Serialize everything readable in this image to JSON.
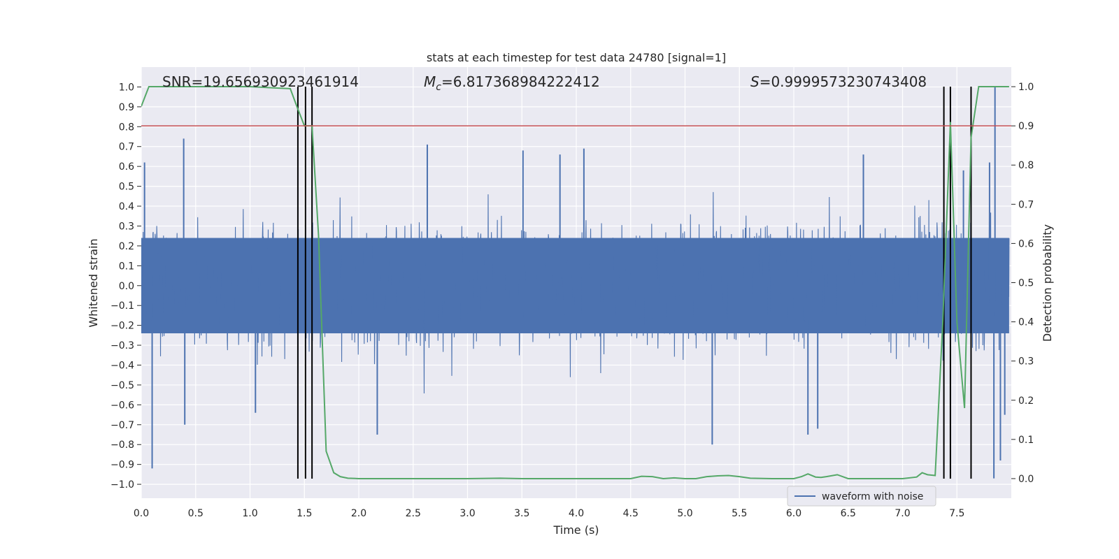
{
  "chart_data": {
    "type": "line",
    "title": "stats at each timestep for test data 24780 [signal=1]",
    "xlabel": "Time (s)",
    "ylabel": "Whitened strain",
    "y2label": "Detection probability",
    "xlim": [
      0.0,
      8.0
    ],
    "ylim": [
      -1.07,
      1.1
    ],
    "y2lim": [
      -0.05,
      1.05
    ],
    "x_ticks": [
      0.0,
      0.5,
      1.0,
      1.5,
      2.0,
      2.5,
      3.0,
      3.5,
      4.0,
      4.5,
      5.0,
      5.5,
      6.0,
      6.5,
      7.0,
      7.5
    ],
    "x_tick_labels": [
      "0.0",
      "0.5",
      "1.0",
      "1.5",
      "2.0",
      "2.5",
      "3.0",
      "3.5",
      "4.0",
      "4.5",
      "5.0",
      "5.5",
      "6.0",
      "6.5",
      "7.0",
      "7.5"
    ],
    "y_ticks": [
      1.0,
      0.9,
      0.8,
      0.7,
      0.6,
      0.5,
      0.4,
      0.3,
      0.2,
      0.1,
      0.0,
      -0.1,
      -0.2,
      -0.3,
      -0.4,
      -0.5,
      -0.6,
      -0.7,
      -0.8,
      -0.9,
      -1.0
    ],
    "y_tick_labels": [
      "1.0",
      "0.9",
      "0.8",
      "0.7",
      "0.6",
      "0.5",
      "0.4",
      "0.3",
      "0.2",
      "0.1",
      "0.0",
      "−0.1",
      "−0.2",
      "−0.3",
      "−0.4",
      "−0.5",
      "−0.6",
      "−0.7",
      "−0.8",
      "−0.9",
      "−1.0"
    ],
    "y2_ticks": [
      1.0,
      0.9,
      0.8,
      0.7,
      0.6,
      0.5,
      0.4,
      0.3,
      0.2,
      0.1,
      0.0
    ],
    "y2_tick_labels": [
      "1.0",
      "0.9",
      "0.8",
      "0.7",
      "0.6",
      "0.5",
      "0.4",
      "0.3",
      "0.2",
      "0.1",
      "0.0"
    ],
    "annotations": {
      "snr": "SNR=19.656930923461914",
      "mc_symbol": "M",
      "mc_sub": "c",
      "mc_value": "=6.817368984222412",
      "s_symbol": "S",
      "s_value": "=0.9999573230743408"
    },
    "legend": {
      "label": "waveform with noise",
      "position": "lower-right"
    },
    "threshold": {
      "value": 0.9,
      "axis": "y2",
      "color": "#c44e52"
    },
    "vertical_lines_x": [
      1.44,
      1.51,
      1.57,
      7.38,
      7.44,
      7.63
    ],
    "waveform": {
      "name": "waveform with noise",
      "color": "#4c72b0",
      "x_start": 0.0,
      "x_end": 7.98,
      "core_amplitude": 0.24,
      "noise_seed": 24780,
      "spike_peaks": [
        {
          "x": 0.03,
          "y": 0.62
        },
        {
          "x": 0.1,
          "y": -0.92
        },
        {
          "x": 0.39,
          "y": 0.74
        },
        {
          "x": 0.4,
          "y": -0.7
        },
        {
          "x": 1.05,
          "y": -0.64
        },
        {
          "x": 2.63,
          "y": 0.71
        },
        {
          "x": 2.17,
          "y": -0.75
        },
        {
          "x": 3.51,
          "y": 0.68
        },
        {
          "x": 3.85,
          "y": 0.66
        },
        {
          "x": 4.07,
          "y": 0.69
        },
        {
          "x": 5.25,
          "y": -0.8
        },
        {
          "x": 6.13,
          "y": -0.75
        },
        {
          "x": 6.22,
          "y": -0.72
        },
        {
          "x": 6.64,
          "y": 0.66
        },
        {
          "x": 7.56,
          "y": 0.58
        },
        {
          "x": 7.85,
          "y": 1.0
        },
        {
          "x": 7.84,
          "y": -0.97
        },
        {
          "x": 7.9,
          "y": -0.88
        },
        {
          "x": 7.94,
          "y": -0.65
        },
        {
          "x": 7.8,
          "y": 0.62
        }
      ]
    },
    "detection_probability": {
      "name": "Detection probability",
      "color": "#55a868",
      "x": [
        0.0,
        0.07,
        0.5,
        1.0,
        1.37,
        1.43,
        1.5,
        1.57,
        1.63,
        1.7,
        1.77,
        1.83,
        1.9,
        2.0,
        2.2,
        2.5,
        3.0,
        3.3,
        3.5,
        4.0,
        4.5,
        4.6,
        4.7,
        4.8,
        4.9,
        5.0,
        5.1,
        5.2,
        5.3,
        5.4,
        5.5,
        5.6,
        5.8,
        6.0,
        6.07,
        6.13,
        6.2,
        6.25,
        6.3,
        6.4,
        6.5,
        6.7,
        7.0,
        7.13,
        7.18,
        7.23,
        7.3,
        7.37,
        7.44,
        7.5,
        7.57,
        7.63,
        7.7,
        7.76,
        7.83,
        7.98
      ],
      "y": [
        0.95,
        1.0,
        1.0,
        1.0,
        0.995,
        0.95,
        0.9,
        0.9,
        0.62,
        0.07,
        0.015,
        0.005,
        0.001,
        0.0,
        0.0,
        0.0,
        0.0,
        0.001,
        0.0,
        0.0,
        0.0,
        0.006,
        0.005,
        0.0,
        0.002,
        0.0,
        0.0,
        0.005,
        0.007,
        0.008,
        0.005,
        0.001,
        0.0,
        0.0,
        0.005,
        0.012,
        0.004,
        0.003,
        0.005,
        0.01,
        0.0,
        0.0,
        0.0,
        0.004,
        0.015,
        0.01,
        0.008,
        0.4,
        0.91,
        0.4,
        0.18,
        0.87,
        1.0,
        1.0,
        1.0,
        1.0
      ]
    }
  }
}
